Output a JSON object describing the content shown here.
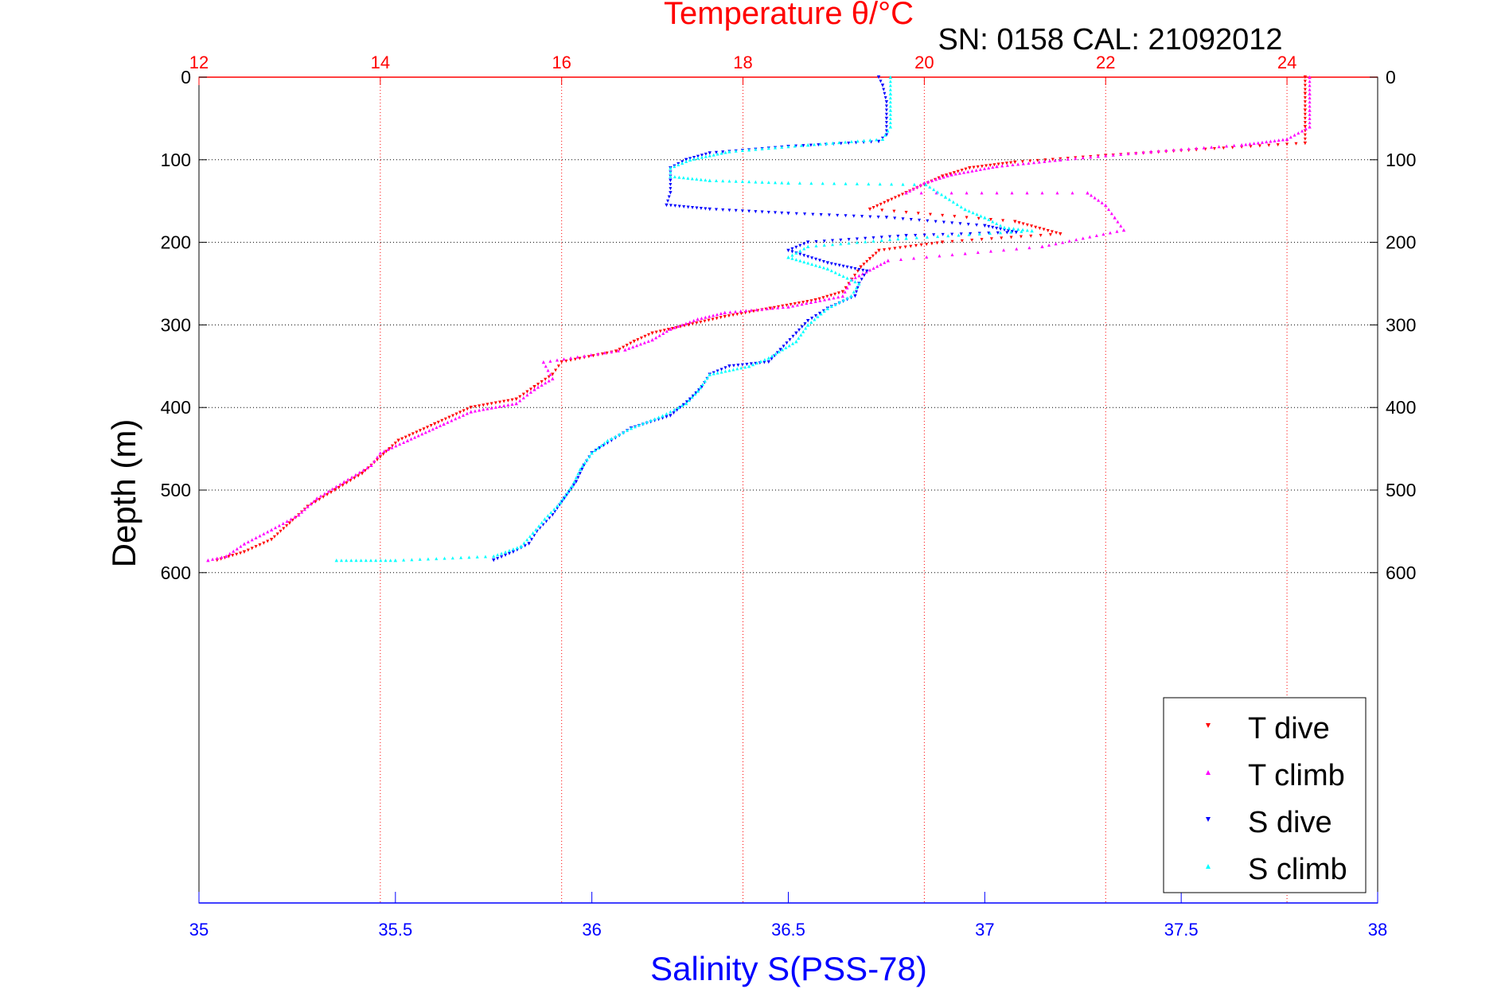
{
  "chart_data": {
    "type": "scatter",
    "title": "Temperature θ/°C",
    "subtitle": "SN: 0158  CAL: 21092012",
    "ylabel": "Depth (m)",
    "xlabel": "Salinity S(PSS-78)",
    "top_axis": {
      "label": "Temperature θ/°C",
      "lim": [
        12,
        25
      ],
      "ticks": [
        12,
        14,
        16,
        18,
        20,
        22,
        24
      ],
      "tick_labels": [
        "12",
        "14",
        "16",
        "18",
        "20",
        "22",
        "24"
      ],
      "color": "#ff0000"
    },
    "bottom_axis": {
      "label": "Salinity S(PSS-78)",
      "lim": [
        35,
        38
      ],
      "ticks": [
        35,
        35.5,
        36,
        36.5,
        37,
        37.5,
        38
      ],
      "tick_labels": [
        "35",
        "35.5",
        "36",
        "36.5",
        "37",
        "37.5",
        "38"
      ],
      "color": "#0000ff"
    },
    "y_axis": {
      "lim": [
        0,
        1000
      ],
      "reversed": true,
      "ticks": [
        0,
        100,
        200,
        300,
        400,
        500,
        600
      ],
      "tick_labels": [
        "0",
        "100",
        "200",
        "300",
        "400",
        "500",
        "600"
      ]
    },
    "grid": true,
    "legend_position": "bottom-right",
    "series": [
      {
        "name": "T dive",
        "axis": "temperature",
        "color": "#ff0000",
        "marker": "triangle-down",
        "points": [
          [
            24.2,
            0
          ],
          [
            24.2,
            20
          ],
          [
            24.2,
            40
          ],
          [
            24.2,
            60
          ],
          [
            24.2,
            80
          ],
          [
            23.0,
            88
          ],
          [
            22.0,
            95
          ],
          [
            21.0,
            103
          ],
          [
            20.5,
            110
          ],
          [
            20.2,
            120
          ],
          [
            20.0,
            130
          ],
          [
            19.8,
            140
          ],
          [
            19.6,
            150
          ],
          [
            19.4,
            160
          ],
          [
            21.0,
            175
          ],
          [
            21.5,
            190
          ],
          [
            20.2,
            200
          ],
          [
            19.5,
            210
          ],
          [
            19.4,
            220
          ],
          [
            19.3,
            230
          ],
          [
            19.2,
            245
          ],
          [
            19.1,
            260
          ],
          [
            18.8,
            270
          ],
          [
            18.3,
            280
          ],
          [
            17.8,
            290
          ],
          [
            17.4,
            300
          ],
          [
            17.0,
            310
          ],
          [
            16.8,
            320
          ],
          [
            16.6,
            332
          ],
          [
            16.0,
            345
          ],
          [
            15.9,
            360
          ],
          [
            15.7,
            375
          ],
          [
            15.5,
            390
          ],
          [
            15.0,
            400
          ],
          [
            14.6,
            420
          ],
          [
            14.2,
            440
          ],
          [
            14.0,
            460
          ],
          [
            13.8,
            480
          ],
          [
            13.5,
            500
          ],
          [
            13.2,
            520
          ],
          [
            13.0,
            540
          ],
          [
            12.8,
            560
          ],
          [
            12.5,
            575
          ],
          [
            12.2,
            585
          ]
        ]
      },
      {
        "name": "T climb",
        "axis": "temperature",
        "color": "#ff00ff",
        "marker": "triangle-up",
        "points": [
          [
            24.25,
            0
          ],
          [
            24.25,
            20
          ],
          [
            24.25,
            40
          ],
          [
            24.25,
            60
          ],
          [
            24.0,
            75
          ],
          [
            23.5,
            82
          ],
          [
            22.5,
            90
          ],
          [
            21.5,
            100
          ],
          [
            20.8,
            108
          ],
          [
            20.3,
            118
          ],
          [
            20.0,
            128
          ],
          [
            19.8,
            140
          ],
          [
            21.8,
            140
          ],
          [
            22.0,
            155
          ],
          [
            22.1,
            170
          ],
          [
            22.2,
            185
          ],
          [
            21.3,
            205
          ],
          [
            19.6,
            222
          ],
          [
            19.2,
            245
          ],
          [
            19.1,
            265
          ],
          [
            18.5,
            278
          ],
          [
            17.8,
            285
          ],
          [
            17.5,
            293
          ],
          [
            17.2,
            305
          ],
          [
            17.0,
            318
          ],
          [
            16.7,
            330
          ],
          [
            15.8,
            345
          ],
          [
            15.9,
            365
          ],
          [
            15.7,
            378
          ],
          [
            15.5,
            395
          ],
          [
            15.0,
            405
          ],
          [
            14.7,
            420
          ],
          [
            14.3,
            440
          ],
          [
            14.0,
            455
          ],
          [
            13.9,
            470
          ],
          [
            13.6,
            490
          ],
          [
            13.3,
            510
          ],
          [
            13.1,
            530
          ],
          [
            12.8,
            548
          ],
          [
            12.5,
            565
          ],
          [
            12.3,
            580
          ],
          [
            12.1,
            585
          ]
        ]
      },
      {
        "name": "S dive",
        "axis": "salinity",
        "color": "#0000ff",
        "marker": "triangle-down",
        "points": [
          [
            36.73,
            0
          ],
          [
            36.74,
            10
          ],
          [
            36.75,
            30
          ],
          [
            36.75,
            50
          ],
          [
            36.75,
            70
          ],
          [
            36.73,
            78
          ],
          [
            36.5,
            84
          ],
          [
            36.3,
            92
          ],
          [
            36.24,
            100
          ],
          [
            36.2,
            110
          ],
          [
            36.2,
            125
          ],
          [
            36.2,
            140
          ],
          [
            36.19,
            155
          ],
          [
            36.3,
            160
          ],
          [
            36.5,
            165
          ],
          [
            36.75,
            170
          ],
          [
            37.0,
            180
          ],
          [
            37.08,
            188
          ],
          [
            36.8,
            192
          ],
          [
            36.55,
            200
          ],
          [
            36.5,
            210
          ],
          [
            36.6,
            225
          ],
          [
            36.7,
            235
          ],
          [
            36.68,
            250
          ],
          [
            36.67,
            265
          ],
          [
            36.6,
            280
          ],
          [
            36.55,
            295
          ],
          [
            36.52,
            310
          ],
          [
            36.48,
            330
          ],
          [
            36.45,
            345
          ],
          [
            36.35,
            350
          ],
          [
            36.3,
            360
          ],
          [
            36.28,
            375
          ],
          [
            36.25,
            390
          ],
          [
            36.2,
            410
          ],
          [
            36.1,
            425
          ],
          [
            36.05,
            440
          ],
          [
            36.0,
            455
          ],
          [
            35.98,
            470
          ],
          [
            35.96,
            490
          ],
          [
            35.93,
            510
          ],
          [
            35.9,
            530
          ],
          [
            35.86,
            550
          ],
          [
            35.84,
            565
          ],
          [
            35.8,
            575
          ],
          [
            35.75,
            585
          ]
        ]
      },
      {
        "name": "S climb",
        "axis": "salinity",
        "color": "#00ffff",
        "marker": "triangle-up",
        "points": [
          [
            36.76,
            0
          ],
          [
            36.76,
            20
          ],
          [
            36.76,
            40
          ],
          [
            36.76,
            60
          ],
          [
            36.74,
            75
          ],
          [
            36.55,
            82
          ],
          [
            36.35,
            90
          ],
          [
            36.25,
            100
          ],
          [
            36.2,
            110
          ],
          [
            36.2,
            120
          ],
          [
            36.3,
            125
          ],
          [
            36.5,
            128
          ],
          [
            36.85,
            130
          ],
          [
            36.9,
            145
          ],
          [
            36.95,
            160
          ],
          [
            37.0,
            170
          ],
          [
            37.05,
            182
          ],
          [
            37.12,
            186
          ],
          [
            36.8,
            195
          ],
          [
            36.55,
            205
          ],
          [
            36.5,
            218
          ],
          [
            36.6,
            232
          ],
          [
            36.68,
            250
          ],
          [
            36.66,
            265
          ],
          [
            36.6,
            280
          ],
          [
            36.55,
            300
          ],
          [
            36.52,
            320
          ],
          [
            36.45,
            340
          ],
          [
            36.4,
            350
          ],
          [
            36.3,
            360
          ],
          [
            36.27,
            380
          ],
          [
            36.24,
            395
          ],
          [
            36.18,
            410
          ],
          [
            36.1,
            425
          ],
          [
            36.04,
            440
          ],
          [
            36.0,
            455
          ],
          [
            35.97,
            475
          ],
          [
            35.95,
            495
          ],
          [
            35.92,
            515
          ],
          [
            35.88,
            535
          ],
          [
            35.85,
            552
          ],
          [
            35.82,
            568
          ],
          [
            35.75,
            580
          ],
          [
            35.5,
            585
          ],
          [
            35.35,
            585
          ]
        ]
      }
    ]
  }
}
